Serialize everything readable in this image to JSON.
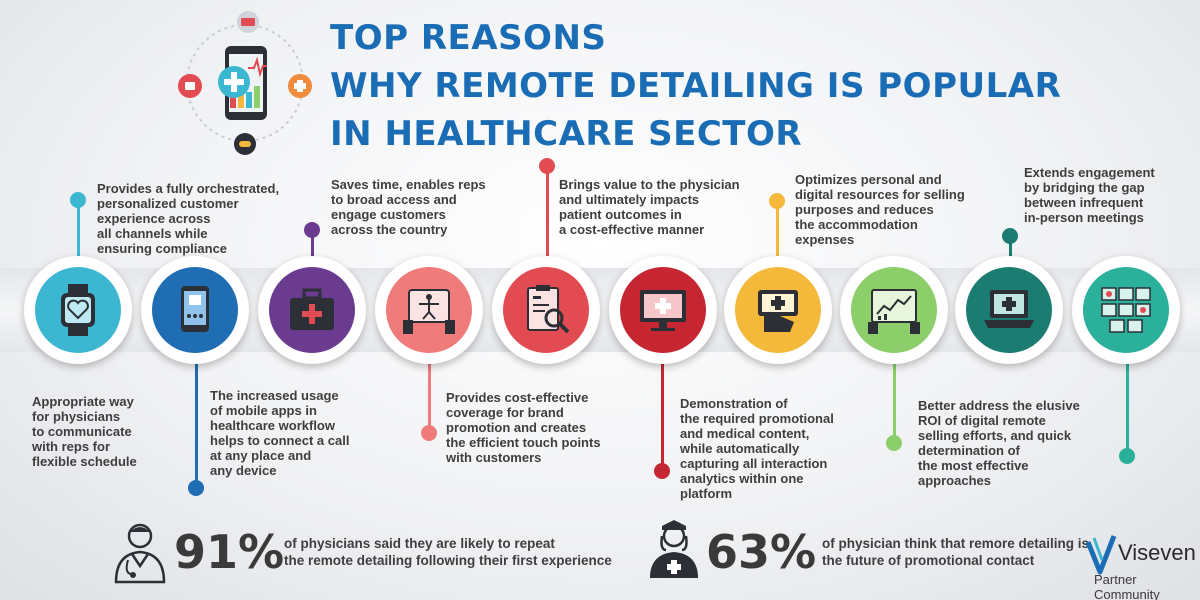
{
  "title": {
    "line1": "TOP REASONS",
    "line2": "WHY REMOTE DETAILING IS POPULAR",
    "line3": "IN HEALTHCARE SECTOR"
  },
  "colors": {
    "title": "#1a6db4",
    "cyan": "#3bb7d2",
    "blue": "#1f6db2",
    "purple": "#6b3b8f",
    "pink": "#ef7b7b",
    "red": "#e34b52",
    "crimson": "#c62532",
    "yellow": "#f4b93a",
    "lightgreen": "#8ccf6a",
    "teal": "#1b7c72",
    "seagreen": "#2ab09b"
  },
  "nodes": [
    {
      "icon": "smartwatch-heart-icon"
    },
    {
      "icon": "mobile-phone-icon"
    },
    {
      "icon": "medical-case-icon"
    },
    {
      "icon": "body-scan-tablet-icon"
    },
    {
      "icon": "clipboard-magnifier-icon"
    },
    {
      "icon": "monitor-medical-icon"
    },
    {
      "icon": "hand-phone-icon"
    },
    {
      "icon": "analytics-tablet-icon"
    },
    {
      "icon": "laptop-medical-icon"
    },
    {
      "icon": "medical-grid-icon"
    }
  ],
  "reasons_top": [
    "Provides a fully orchestrated,\npersonalized customer\nexperience across\nall channels while\nensuring compliance",
    "Saves time, enables reps\nto broad access and\nengage customers\nacross the country",
    "Brings value to the physician\nand ultimately impacts\npatient outcomes in\na cost-effective manner",
    "Optimizes personal and\ndigital resources for selling\npurposes and reduces\nthe accommodation\nexpenses",
    "Extends engagement\nby bridging the gap\nbetween infrequent\nin-person meetings"
  ],
  "reasons_bottom": [
    "Appropriate way\nfor physicians\nto communicate\nwith reps for\nflexible schedule",
    "The increased usage\nof mobile apps in\nhealthcare workflow\nhelps to connect a call\nat any place and\nany device",
    "Provides cost-effective\ncoverage for brand\npromotion and creates\nthe efficient touch points\nwith customers",
    "Demonstration of\nthe required promotional\nand medical content,\nwhile automatically\ncapturing all interaction\nanalytics within one\nplatform",
    "Better address the elusive\nROI of digital remote\nselling efforts, and quick\ndetermination of\nthe most effective\napproaches"
  ],
  "stats": [
    {
      "value": "91%",
      "text": "of physicians said they are likely to repeat\nthe remote detailing following their first experience"
    },
    {
      "value": "63%",
      "text": "of physician think that remore detailing is\nthe future of promotional contact"
    }
  ],
  "logo": {
    "name": "Viseven",
    "sub": "Partner Community"
  }
}
